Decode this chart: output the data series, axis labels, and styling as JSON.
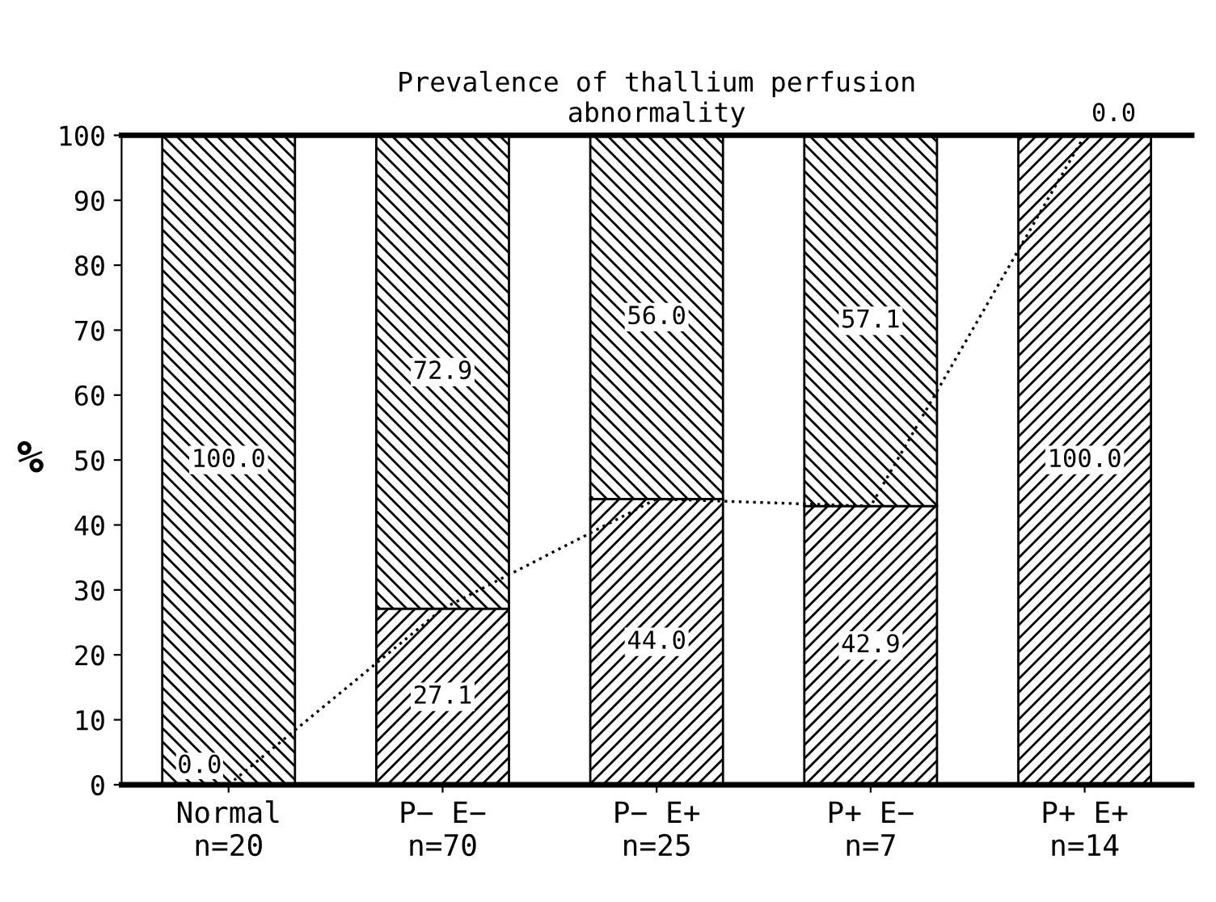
{
  "chart_data": {
    "type": "bar",
    "title": "Prevalence of thallium perfusion\nabnormality",
    "ylabel": "%",
    "categories": [
      "Normal\nn=20",
      "P− E−\nn=70",
      "P− E+\nn=25",
      "P+ E−\nn=7",
      "P+ E+\nn=14"
    ],
    "stacked": true,
    "ylim": [
      0,
      100
    ],
    "yticks": [
      0,
      10,
      20,
      30,
      40,
      50,
      60,
      70,
      80,
      90,
      100
    ],
    "grid": false,
    "legend": false,
    "series": [
      {
        "color": "#000000",
        "values": [
          0.0,
          27.1,
          44.0,
          42.9,
          100.0
        ],
        "value_labels": [
          "0.0",
          "27.1",
          "44.0",
          "42.9",
          "100.0"
        ]
      },
      {
        "color": "#000000",
        "values": [
          100.0,
          72.9,
          56.0,
          57.1,
          0.0
        ],
        "value_labels": [
          "100.0",
          "72.9",
          "56.0",
          "57.1",
          "0.0"
        ]
      },
      {
        "type": "line",
        "color": "#000000",
        "values": [
          0.0,
          27.1,
          44.0,
          42.9,
          100.0
        ],
        "line_style": "dotted",
        "marker": "none"
      }
    ]
  }
}
